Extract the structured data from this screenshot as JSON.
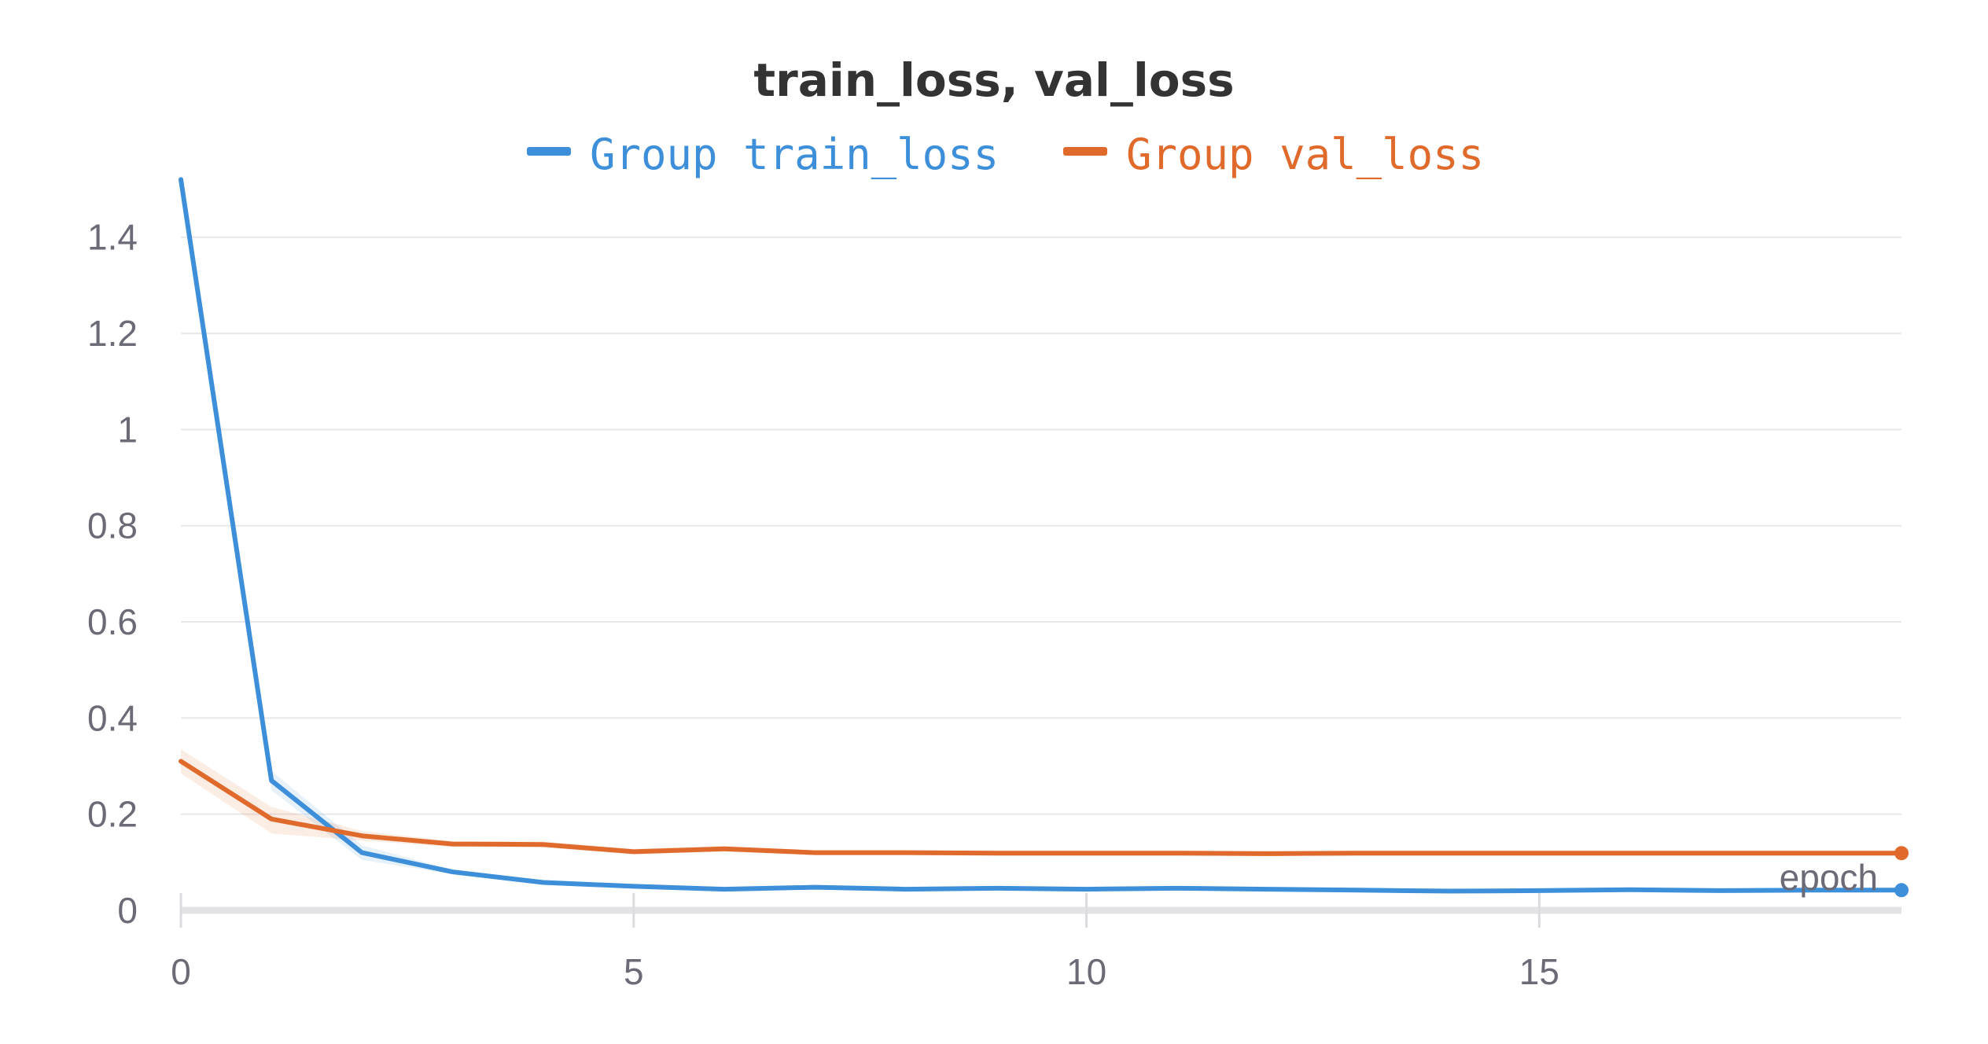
{
  "chart_data": {
    "type": "line",
    "title": "train_loss, val_loss",
    "xlabel": "epoch",
    "ylabel": "",
    "xlim": [
      0,
      19
    ],
    "ylim": [
      0,
      1.55
    ],
    "x_ticks": [
      0,
      5,
      10,
      15
    ],
    "y_ticks": [
      0,
      0.2,
      0.4,
      0.6,
      0.8,
      1,
      1.2,
      1.4
    ],
    "y_tick_labels": [
      "0",
      "0.2",
      "0.4",
      "0.6",
      "0.8",
      "1",
      "1.2",
      "1.4"
    ],
    "x_tick_labels": [
      "0",
      "5",
      "10",
      "15"
    ],
    "grid": true,
    "legend_position": "top-center",
    "x": [
      0,
      1,
      2,
      3,
      4,
      5,
      6,
      7,
      8,
      9,
      10,
      11,
      12,
      13,
      14,
      15,
      16,
      17,
      18,
      19
    ],
    "series": [
      {
        "name": "Group train_loss",
        "color": "#3d8fd9",
        "values": [
          1.52,
          0.27,
          0.12,
          0.08,
          0.058,
          0.05,
          0.044,
          0.048,
          0.044,
          0.046,
          0.044,
          0.046,
          0.044,
          0.042,
          0.04,
          0.041,
          0.043,
          0.041,
          0.042,
          0.042
        ],
        "band_low": [
          1.51,
          0.25,
          0.105,
          0.075,
          0.053,
          0.046,
          0.04,
          0.044,
          0.04,
          0.042,
          0.04,
          0.042,
          0.04,
          0.038,
          0.036,
          0.037,
          0.039,
          0.037,
          0.038,
          0.038
        ],
        "band_high": [
          1.53,
          0.29,
          0.135,
          0.085,
          0.063,
          0.054,
          0.048,
          0.052,
          0.048,
          0.05,
          0.048,
          0.05,
          0.048,
          0.046,
          0.044,
          0.045,
          0.047,
          0.045,
          0.046,
          0.046
        ]
      },
      {
        "name": "Group val_loss",
        "color": "#e06a2c",
        "values": [
          0.31,
          0.19,
          0.155,
          0.138,
          0.137,
          0.122,
          0.128,
          0.12,
          0.12,
          0.119,
          0.119,
          0.119,
          0.118,
          0.119,
          0.119,
          0.119,
          0.119,
          0.119,
          0.119,
          0.119
        ],
        "band_low": [
          0.285,
          0.16,
          0.145,
          0.132,
          0.131,
          0.116,
          0.122,
          0.115,
          0.115,
          0.114,
          0.114,
          0.114,
          0.113,
          0.114,
          0.114,
          0.114,
          0.114,
          0.114,
          0.114,
          0.114
        ],
        "band_high": [
          0.335,
          0.215,
          0.165,
          0.144,
          0.143,
          0.128,
          0.134,
          0.125,
          0.125,
          0.124,
          0.124,
          0.124,
          0.123,
          0.124,
          0.124,
          0.124,
          0.124,
          0.124,
          0.124,
          0.124
        ]
      }
    ]
  }
}
